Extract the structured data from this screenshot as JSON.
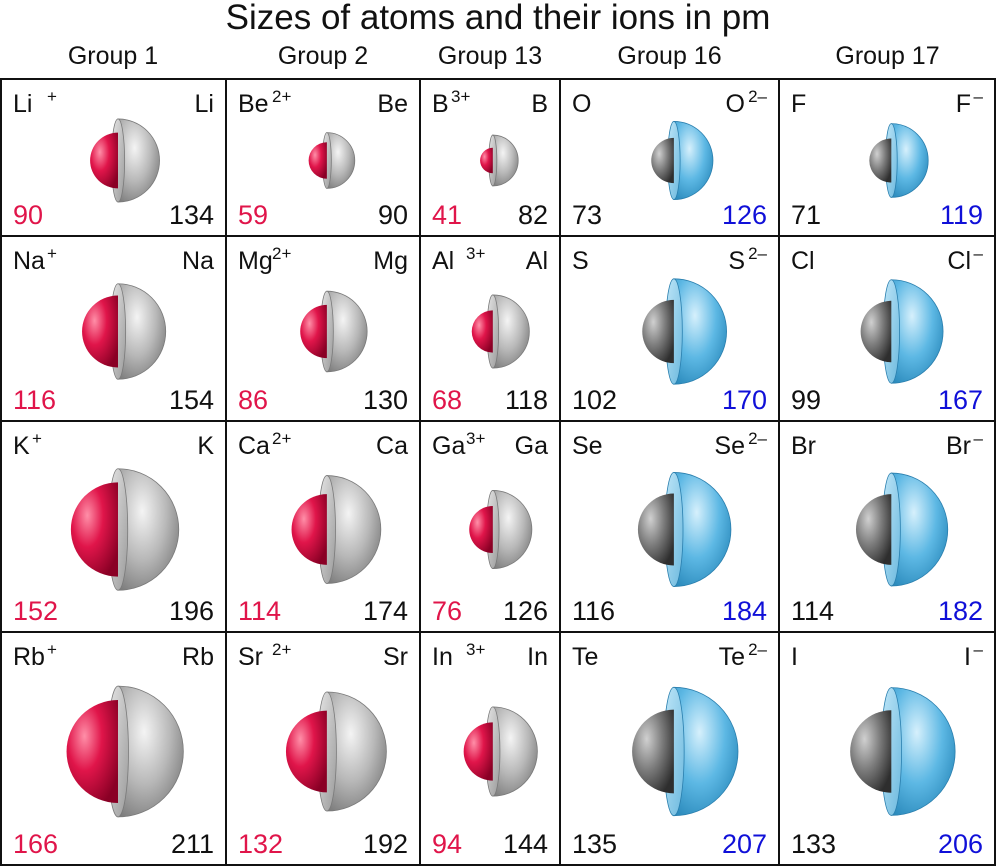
{
  "title": "Sizes of atoms and their ions in pm",
  "colors": {
    "cation": "#e0154a",
    "anion_text": "#1010d8",
    "metal_shell": "#b5b5b5",
    "anion_shell": "#55b3e0",
    "atom_core": "#7a7a7a",
    "text": "#111111"
  },
  "groups": [
    {
      "name": "Group 1",
      "kind": "cation",
      "cells": [
        {
          "atom": "Li",
          "ion": "Li",
          "charge": "+",
          "ion_radius": "90",
          "atom_radius": "134"
        },
        {
          "atom": "Na",
          "ion": "Na",
          "charge": "+",
          "ion_radius": "116",
          "atom_radius": "154"
        },
        {
          "atom": "K",
          "ion": "K",
          "charge": "+",
          "ion_radius": "152",
          "atom_radius": "196"
        },
        {
          "atom": "Rb",
          "ion": "Rb",
          "charge": "+",
          "ion_radius": "166",
          "atom_radius": "211"
        }
      ]
    },
    {
      "name": "Group 2",
      "kind": "cation",
      "cells": [
        {
          "atom": "Be",
          "ion": "Be",
          "charge": "2+",
          "ion_radius": "59",
          "atom_radius": "90"
        },
        {
          "atom": "Mg",
          "ion": "Mg",
          "charge": "2+",
          "ion_radius": "86",
          "atom_radius": "130"
        },
        {
          "atom": "Ca",
          "ion": "Ca",
          "charge": "2+",
          "ion_radius": "114",
          "atom_radius": "174"
        },
        {
          "atom": "Sr",
          "ion": "Sr",
          "charge": "2+",
          "ion_radius": "132",
          "atom_radius": "192"
        }
      ]
    },
    {
      "name": "Group 13",
      "kind": "cation",
      "cells": [
        {
          "atom": "B",
          "ion": "B",
          "charge": "3+",
          "ion_radius": "41",
          "atom_radius": "82"
        },
        {
          "atom": "Al",
          "ion": "Al",
          "charge": "3+",
          "ion_radius": "68",
          "atom_radius": "118"
        },
        {
          "atom": "Ga",
          "ion": "Ga",
          "charge": "3+",
          "ion_radius": "76",
          "atom_radius": "126"
        },
        {
          "atom": "In",
          "ion": "In",
          "charge": "3+",
          "ion_radius": "94",
          "atom_radius": "144"
        }
      ]
    },
    {
      "name": "Group 16",
      "kind": "anion",
      "cells": [
        {
          "atom": "O",
          "ion": "O",
          "charge": "2–",
          "ion_radius": "126",
          "atom_radius": "73"
        },
        {
          "atom": "S",
          "ion": "S",
          "charge": "2–",
          "ion_radius": "170",
          "atom_radius": "102"
        },
        {
          "atom": "Se",
          "ion": "Se",
          "charge": "2–",
          "ion_radius": "184",
          "atom_radius": "116"
        },
        {
          "atom": "Te",
          "ion": "Te",
          "charge": "2–",
          "ion_radius": "207",
          "atom_radius": "135"
        }
      ]
    },
    {
      "name": "Group 17",
      "kind": "anion",
      "cells": [
        {
          "atom": "F",
          "ion": "F",
          "charge": "–",
          "ion_radius": "119",
          "atom_radius": "71"
        },
        {
          "atom": "Cl",
          "ion": "Cl",
          "charge": "–",
          "ion_radius": "167",
          "atom_radius": "99"
        },
        {
          "atom": "Br",
          "ion": "Br",
          "charge": "–",
          "ion_radius": "182",
          "atom_radius": "114"
        },
        {
          "atom": "I",
          "ion": "I",
          "charge": "–",
          "ion_radius": "206",
          "atom_radius": "133"
        }
      ]
    }
  ]
}
